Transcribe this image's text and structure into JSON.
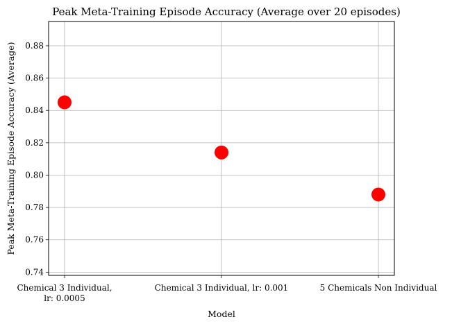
{
  "chart_data": {
    "type": "scatter",
    "title": "Peak Meta-Training Episode Accuracy (Average over 20 episodes)",
    "xlabel": "Model",
    "ylabel": "Peak Meta-Training Episode Accuracy (Average)",
    "categories": [
      [
        "Chemical 3 Individual,",
        "lr: 0.0005"
      ],
      [
        "Chemical 3 Individual, lr: 0.001"
      ],
      [
        "5 Chemicals Non Individual"
      ]
    ],
    "values": [
      0.845,
      0.814,
      0.788
    ],
    "ylim": [
      0.738,
      0.895
    ],
    "yticks": [
      "0.74",
      "0.76",
      "0.78",
      "0.80",
      "0.82",
      "0.84",
      "0.86",
      "0.88"
    ],
    "grid": true,
    "marker_color": "#ff0000"
  }
}
